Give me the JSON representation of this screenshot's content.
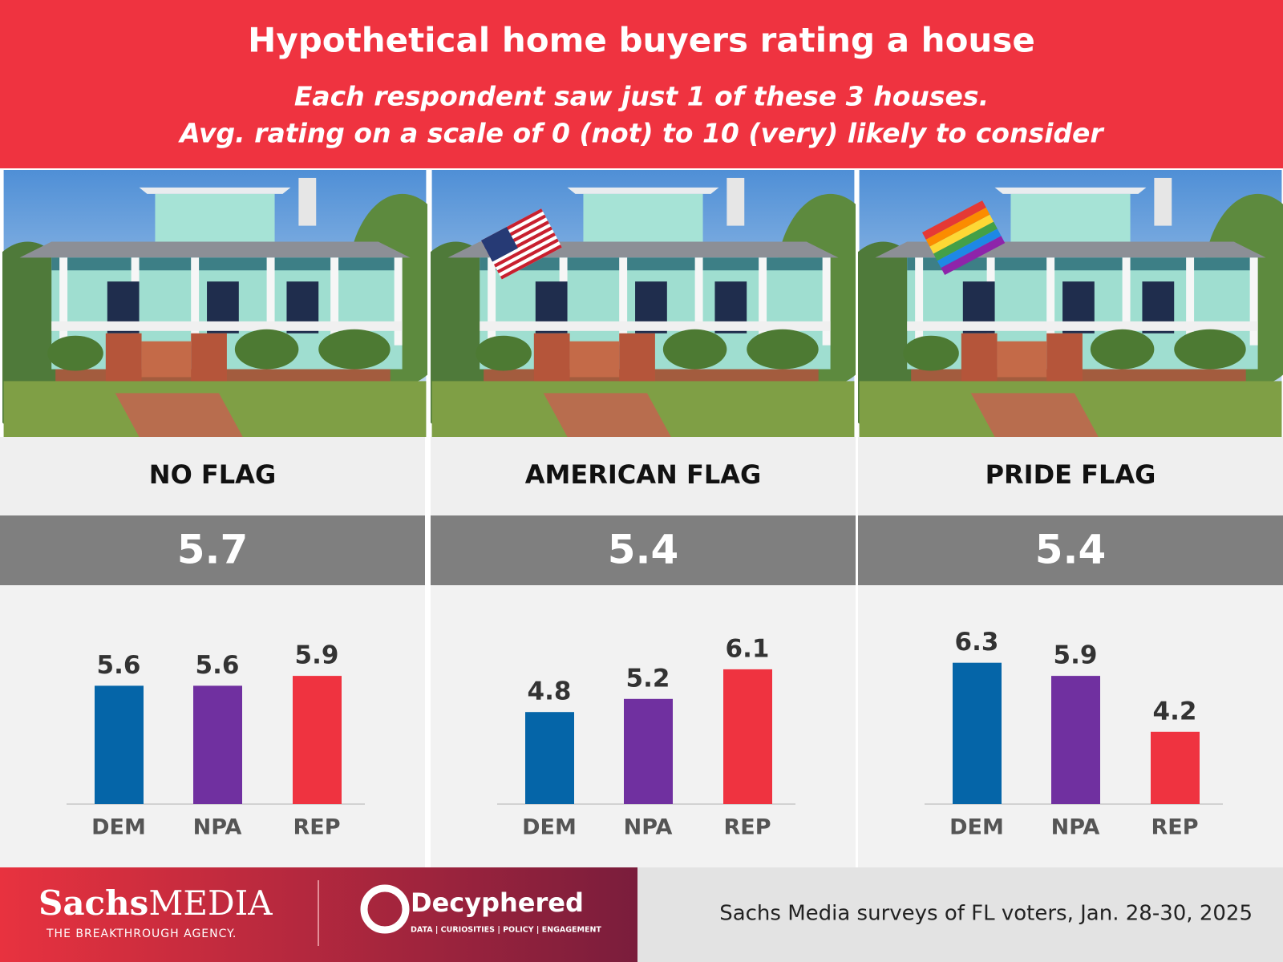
{
  "header": {
    "title": "Hypothetical home buyers rating a house",
    "subtitle": [
      "Each respondent saw just 1 of these 3 houses.",
      "Avg. rating on a scale of 0 (not) to 10 (very) likely to consider"
    ]
  },
  "chart_data": [
    {
      "type": "bar",
      "title": "NO FLAG",
      "average": 5.7,
      "categories": [
        "DEM",
        "NPA",
        "REP"
      ],
      "values": [
        5.6,
        5.6,
        5.9
      ],
      "colors": [
        "#0565a8",
        "#7030a0",
        "#ef3340"
      ],
      "ylim": [
        2,
        7
      ]
    },
    {
      "type": "bar",
      "title": "AMERICAN FLAG",
      "average": 5.4,
      "categories": [
        "DEM",
        "NPA",
        "REP"
      ],
      "values": [
        4.8,
        5.2,
        6.1
      ],
      "colors": [
        "#0565a8",
        "#7030a0",
        "#ef3340"
      ],
      "ylim": [
        2,
        7
      ]
    },
    {
      "type": "bar",
      "title": "PRIDE FLAG",
      "average": 5.4,
      "categories": [
        "DEM",
        "NPA",
        "REP"
      ],
      "values": [
        6.3,
        5.9,
        4.2
      ],
      "colors": [
        "#0565a8",
        "#7030a0",
        "#ef3340"
      ],
      "ylim": [
        2,
        7
      ]
    }
  ],
  "footer": {
    "logo_1": {
      "name_bold": "Sachs",
      "name_light": "MEDIA",
      "tagline": "THE BREAKTHROUGH AGENCY."
    },
    "logo_2": {
      "name": "Decyphered",
      "tagline": "DATA | CURIOSITIES | POLICY | ENGAGEMENT"
    },
    "source": "Sachs Media surveys of FL voters, Jan. 28-30, 2025"
  }
}
